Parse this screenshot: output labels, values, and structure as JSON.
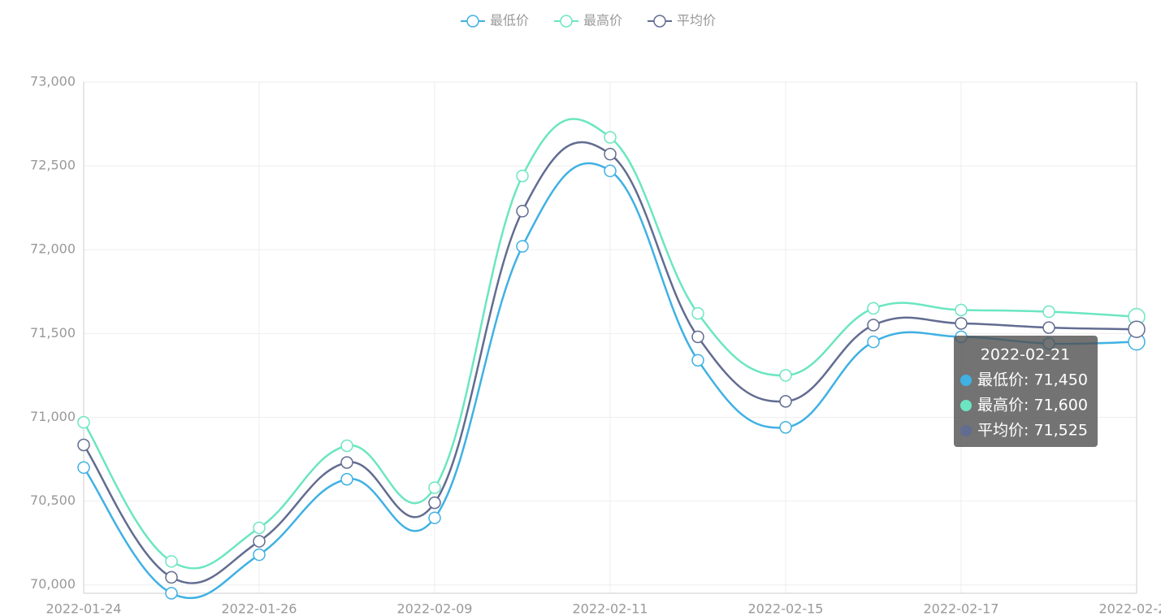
{
  "chart_data": {
    "type": "line",
    "categories": [
      "2022-01-24",
      null,
      "2022-01-26",
      null,
      "2022-02-09",
      null,
      "2022-02-11",
      null,
      "2022-02-15",
      null,
      "2022-02-17",
      null,
      "2022-02-21"
    ],
    "series": [
      {
        "name": "最低价",
        "color": "#3fb1e3",
        "values": [
          70700,
          69950,
          70180,
          70630,
          70400,
          72020,
          72470,
          71340,
          70940,
          71450,
          71480,
          71440,
          71450
        ]
      },
      {
        "name": "最高价",
        "color": "#6be6c1",
        "values": [
          70970,
          70140,
          70340,
          70830,
          70580,
          72440,
          72670,
          71620,
          71250,
          71650,
          71640,
          71630,
          71600
        ]
      },
      {
        "name": "平均价",
        "color": "#626c91",
        "values": [
          70835,
          70045,
          70260,
          70730,
          70490,
          72230,
          72570,
          71480,
          71095,
          71550,
          71560,
          71535,
          71525
        ]
      }
    ],
    "ylim": [
      69950,
      73000
    ],
    "yticks": [
      {
        "value": 70000,
        "label": "70,000"
      },
      {
        "value": 70500,
        "label": "70,500"
      },
      {
        "value": 71000,
        "label": "71,000"
      },
      {
        "value": 71500,
        "label": "71,500"
      },
      {
        "value": 72000,
        "label": "72,000"
      },
      {
        "value": 72500,
        "label": "72,500"
      },
      {
        "value": 73000,
        "label": "73,000"
      }
    ],
    "grid": true,
    "legend": "top",
    "smooth": true,
    "tooltip": {
      "index": 12,
      "rows": [
        "最低价: 71,450",
        "最高价: 71,600",
        "平均价: 71,525"
      ]
    }
  }
}
